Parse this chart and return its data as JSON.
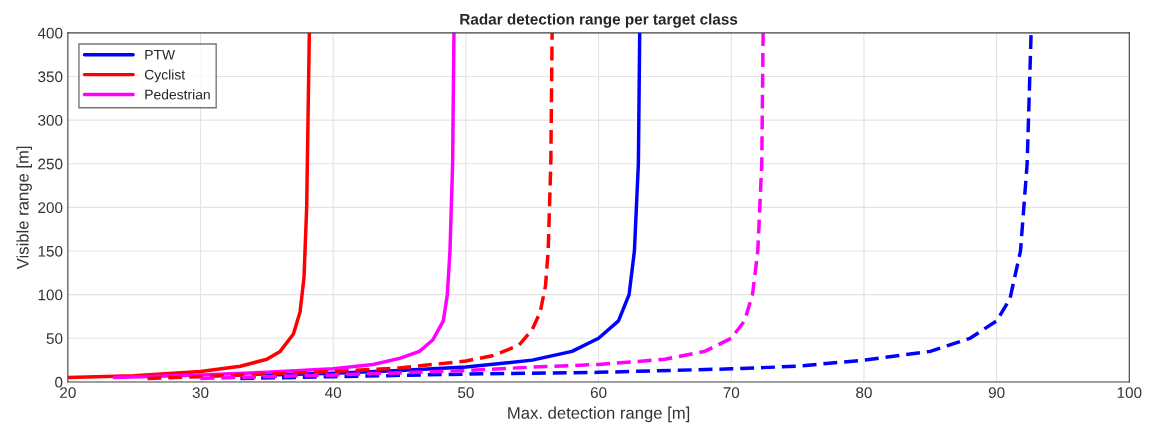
{
  "chart_data": {
    "type": "line",
    "title": "Radar detection range per target class",
    "xlabel": "Max. detection range [m]",
    "ylabel": "Visible range [m]",
    "xlim": [
      20,
      100
    ],
    "xticks": [
      20,
      30,
      40,
      50,
      60,
      70,
      80,
      90,
      100
    ],
    "ylim": [
      0,
      400
    ],
    "yticks": [
      0,
      50,
      100,
      150,
      200,
      250,
      300,
      350,
      400
    ],
    "grid": true,
    "legend": "top left",
    "series": [
      {
        "name": "PTW",
        "color": "#0000ff",
        "line_style": "solid",
        "x": [
          35,
          40,
          45,
          50,
          55,
          58,
          60,
          61.5,
          62.3,
          62.7,
          63,
          63.1
        ],
        "values": [
          8,
          10,
          13,
          17,
          25,
          35,
          50,
          70,
          100,
          150,
          250,
          400
        ]
      },
      {
        "name": "Cyclist",
        "color": "#ff0000",
        "line_style": "solid",
        "x": [
          20,
          25,
          30,
          33,
          35,
          36,
          37,
          37.5,
          37.8,
          38,
          38.1,
          38.2
        ],
        "values": [
          5,
          7,
          12,
          18,
          26,
          35,
          55,
          80,
          120,
          200,
          300,
          400
        ]
      },
      {
        "name": "Pedestrian",
        "color": "#ff00ff",
        "line_style": "solid",
        "x": [
          23.5,
          30,
          35,
          40,
          43,
          45,
          46.5,
          47.5,
          48.3,
          48.6,
          48.8,
          49,
          49.1
        ],
        "values": [
          5,
          8,
          11,
          15,
          20,
          27,
          35,
          48,
          70,
          100,
          150,
          250,
          400
        ]
      },
      {
        "color": "#0000ff",
        "line_style": "dashed",
        "x": [
          33,
          40,
          50,
          60,
          70,
          75,
          80,
          85,
          88,
          90,
          91,
          91.8,
          92.3,
          92.6
        ],
        "values": [
          4,
          6,
          9,
          11,
          15,
          18,
          25,
          35,
          50,
          70,
          95,
          150,
          250,
          400
        ]
      },
      {
        "color": "#ff0000",
        "line_style": "dashed",
        "x": [
          26,
          30,
          35,
          40,
          45,
          50,
          52,
          54,
          55,
          55.6,
          56,
          56.2,
          56.4,
          56.5
        ],
        "values": [
          4,
          6,
          9,
          12,
          16,
          24,
          30,
          42,
          60,
          80,
          110,
          150,
          250,
          400
        ]
      },
      {
        "color": "#ff00ff",
        "line_style": "dashed",
        "x": [
          30,
          40,
          50,
          55,
          60,
          65,
          68,
          70,
          71,
          71.6,
          72,
          72.3,
          72.4
        ],
        "values": [
          4,
          8,
          13,
          17,
          20,
          26,
          35,
          50,
          70,
          100,
          150,
          250,
          400
        ]
      }
    ]
  }
}
